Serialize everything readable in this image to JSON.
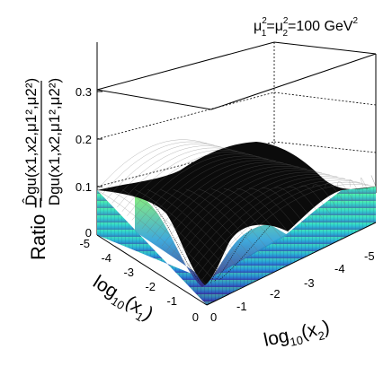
{
  "annotation": {
    "mu1": "μ",
    "mu1_sup": "2",
    "mu1_sub": "1",
    "eq": "=",
    "mu2": "μ",
    "mu2_sup": "2",
    "mu2_sub": "2",
    "value": "=100 GeV",
    "value_sup": "2"
  },
  "ylabel": {
    "prefix": "Ratio =",
    "numerator": "D̂gu(x1,x2,μ1²,μ2²)",
    "denominator": "Dgu(x1,x2,μ1²,μ2²)"
  },
  "xlabel_1": {
    "main": "log",
    "sub": "10",
    "arg": "(x",
    "arg_sub": "1",
    "close": ")"
  },
  "xlabel_2": {
    "main": "log",
    "sub": "10",
    "arg": "(x",
    "arg_sub": "2",
    "close": ")"
  },
  "chart_data": {
    "type": "surface",
    "x1_axis": {
      "label": "log10(x1)",
      "range": [
        -5,
        0
      ],
      "ticks": [
        "-5",
        "-4",
        "-3",
        "-2",
        "-1",
        "0"
      ]
    },
    "x2_axis": {
      "label": "log10(x2)",
      "range": [
        -5,
        0
      ],
      "ticks": [
        "0",
        "-1",
        "-2",
        "-3",
        "-4",
        "-5"
      ]
    },
    "z_axis": {
      "label": "Ratio",
      "range": [
        0,
        0.3
      ],
      "ticks": [
        "0",
        "0.1",
        "0.2",
        "0.3"
      ]
    },
    "surface": {
      "edge_value": 0.1,
      "plateau_value": 0.13,
      "valley_value": 0.0,
      "description_points": [
        {
          "log10_x1": -5,
          "log10_x2": -5,
          "ratio": 0.1
        },
        {
          "log10_x1": -5,
          "log10_x2": 0,
          "ratio": 0.1
        },
        {
          "log10_x1": 0,
          "log10_x2": -5,
          "ratio": 0.1
        },
        {
          "log10_x1": -2.5,
          "log10_x2": -2.5,
          "ratio": 0.13
        },
        {
          "log10_x1": -0.3,
          "log10_x2": -0.3,
          "ratio": 0.0
        }
      ]
    },
    "colors": {
      "low": "#3a1f8f",
      "mid": "#2c8fd6",
      "high": "#55f0a0",
      "wire": "#000000"
    },
    "grid": true
  }
}
